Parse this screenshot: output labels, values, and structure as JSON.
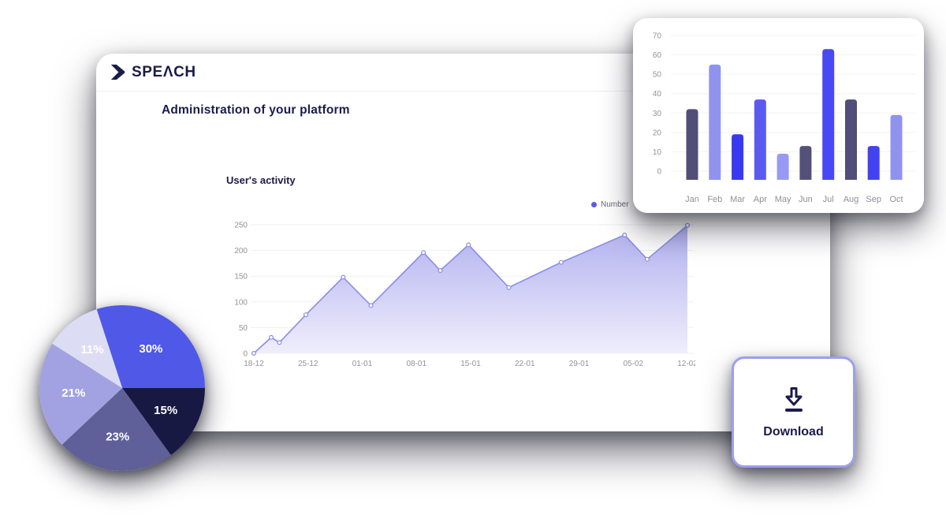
{
  "header": {
    "logo_text": "SPEΛCH",
    "logo_color": "#1b1b4b"
  },
  "page": {
    "title": "Administration of your platform"
  },
  "chart_data": [
    {
      "id": "user-activity",
      "type": "area",
      "title": "User's activity",
      "legend_label": "Number",
      "legend_color": "#5a5af0",
      "x_labels": [
        "18-12",
        "25-12",
        "01-01",
        "08-01",
        "15-01",
        "22-01",
        "29-01",
        "05-02",
        "12-02"
      ],
      "y_ticks": [
        0,
        50,
        100,
        150,
        200,
        250
      ],
      "ylim": [
        0,
        250
      ],
      "grid": true,
      "line_color": "#8c8cea",
      "fill_top": "#b1b0ef",
      "fill_bottom": "#efeefc",
      "points": [
        {
          "x": 0.0,
          "y": 0
        },
        {
          "x": 0.04,
          "y": 31
        },
        {
          "x": 0.059,
          "y": 21
        },
        {
          "x": 0.12,
          "y": 75
        },
        {
          "x": 0.206,
          "y": 148
        },
        {
          "x": 0.27,
          "y": 93
        },
        {
          "x": 0.391,
          "y": 196
        },
        {
          "x": 0.43,
          "y": 161
        },
        {
          "x": 0.495,
          "y": 211
        },
        {
          "x": 0.588,
          "y": 128
        },
        {
          "x": 0.709,
          "y": 177
        },
        {
          "x": 0.855,
          "y": 230
        },
        {
          "x": 0.907,
          "y": 183
        },
        {
          "x": 1.0,
          "y": 249
        }
      ]
    },
    {
      "id": "monthly-bars",
      "type": "bar",
      "categories": [
        "Jan",
        "Feb",
        "Mar",
        "Apr",
        "May",
        "Jun",
        "Jul",
        "Aug",
        "Sep",
        "Oct"
      ],
      "values": [
        32,
        55,
        19,
        37,
        9,
        13,
        63,
        37,
        13,
        29
      ],
      "bar_colors": [
        "#514e78",
        "#9093ee",
        "#3939f0",
        "#5a5af0",
        "#979af2",
        "#53507a",
        "#4848f5",
        "#514e78",
        "#4242f2",
        "#9093ee"
      ],
      "y_ticks": [
        0,
        10,
        20,
        30,
        40,
        50,
        60,
        70
      ],
      "ylim": [
        0,
        70
      ],
      "grid": true
    },
    {
      "id": "share-pie",
      "type": "pie",
      "start_angle_deg": -18,
      "label_color": "#ffffff",
      "slices": [
        {
          "label": "30%",
          "value": 30,
          "color": "#5058e8"
        },
        {
          "label": "15%",
          "value": 15,
          "color": "#171942"
        },
        {
          "label": "23%",
          "value": 23,
          "color": "#5f5f99"
        },
        {
          "label": "21%",
          "value": 21,
          "color": "#a2a2e2"
        },
        {
          "label": "11%",
          "value": 11,
          "color": "#dcdcf5"
        }
      ]
    }
  ],
  "download_card": {
    "label": "Download",
    "border_color": "#9e9ef2",
    "icon_color": "#1b1b4b"
  }
}
